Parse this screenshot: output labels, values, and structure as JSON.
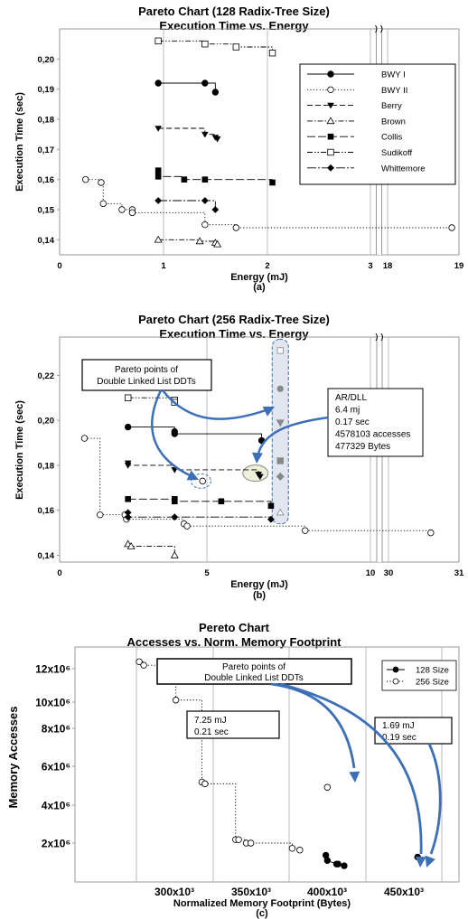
{
  "chart_data": [
    {
      "type": "scatter",
      "title": "Pareto Chart (128 Radix-Tree Size)",
      "subtitle": "Execution Time vs. Energy",
      "xlabel": "Energy (mJ)",
      "ylabel": "Execution Time (sec)",
      "caption": "(a)",
      "xticks": [
        "0",
        "1",
        "2",
        "3",
        "18",
        "19"
      ],
      "yticks": [
        "0,14",
        "0,15",
        "0,16",
        "0,17",
        "0,18",
        "0,19",
        "0,20"
      ],
      "xlim": [
        0,
        19
      ],
      "ylim": [
        0.135,
        0.21
      ],
      "x_axis_break": [
        3.5,
        17.5
      ],
      "grid": "vertical",
      "legend_position": "top-right",
      "series": [
        {
          "name": "BWY I",
          "marker": "filled-circle",
          "line": "solid",
          "points": [
            [
              0.95,
              0.192
            ],
            [
              1.4,
              0.192
            ],
            [
              1.5,
              0.189
            ]
          ]
        },
        {
          "name": "BWY II",
          "marker": "open-circle",
          "line": "dotted",
          "points": [
            [
              0.25,
              0.16
            ],
            [
              0.4,
              0.159
            ],
            [
              0.42,
              0.152
            ],
            [
              0.6,
              0.15
            ],
            [
              0.7,
              0.15
            ],
            [
              0.7,
              0.149
            ],
            [
              1.4,
              0.145
            ],
            [
              1.7,
              0.144
            ],
            [
              18.9,
              0.144
            ]
          ]
        },
        {
          "name": "Berry",
          "marker": "filled-triangle-down",
          "line": "dashed",
          "points": [
            [
              0.95,
              0.177
            ],
            [
              1.4,
              0.175
            ],
            [
              1.5,
              0.174
            ],
            [
              1.52,
              0.1735
            ]
          ]
        },
        {
          "name": "Brown",
          "marker": "open-triangle-up",
          "line": "dash-dot",
          "points": [
            [
              0.95,
              0.14
            ],
            [
              1.35,
              0.1395
            ],
            [
              1.5,
              0.139
            ],
            [
              1.52,
              0.1385
            ]
          ]
        },
        {
          "name": "Collis",
          "marker": "filled-square",
          "line": "long-dash",
          "points": [
            [
              0.95,
              0.163
            ],
            [
              0.95,
              0.161
            ],
            [
              1.2,
              0.16
            ],
            [
              1.4,
              0.16
            ],
            [
              2.05,
              0.159
            ]
          ]
        },
        {
          "name": "Sudikoff",
          "marker": "open-square",
          "line": "dash-dot-dot",
          "points": [
            [
              0.95,
              0.206
            ],
            [
              1.4,
              0.205
            ],
            [
              1.7,
              0.204
            ],
            [
              2.05,
              0.202
            ]
          ]
        },
        {
          "name": "Whittemore",
          "marker": "filled-diamond",
          "line": "long-dash-dot",
          "points": [
            [
              0.95,
              0.153
            ],
            [
              1.4,
              0.153
            ],
            [
              1.5,
              0.15
            ]
          ]
        }
      ]
    },
    {
      "type": "scatter",
      "title": "Pareto Chart (256 Radix-Tree Size)",
      "subtitle": "Execution Time vs. Energy",
      "xlabel": "Energy (mJ)",
      "ylabel": "Execution Time (sec)",
      "caption": "(b)",
      "xticks": [
        "0",
        "5",
        "10",
        "30",
        "31"
      ],
      "yticks": [
        "0,14",
        "0,16",
        "0,18",
        "0,20",
        "0,22"
      ],
      "xlim": [
        0,
        31
      ],
      "ylim": [
        0.137,
        0.237
      ],
      "x_axis_break": [
        10.5,
        29.5
      ],
      "grid": "vertical",
      "annotations": [
        {
          "text": [
            "Pareto points of",
            "Double Linked List DDTs"
          ]
        },
        {
          "text": [
            "AR/DLL",
            "6.4 mj",
            "0.17 sec",
            "4578103 accesses",
            "477329 Bytes"
          ]
        }
      ],
      "series": [
        {
          "name": "BWY I",
          "marker": "filled-circle",
          "line": "solid",
          "points": [
            [
              2.2,
              0.197
            ],
            [
              3.7,
              0.195
            ],
            [
              3.7,
              0.194
            ],
            [
              6.5,
              0.191
            ]
          ]
        },
        {
          "name": "BWY II",
          "marker": "open-circle",
          "line": "dotted",
          "points": [
            [
              0.8,
              0.192
            ],
            [
              1.3,
              0.158
            ],
            [
              2.1,
              0.158
            ],
            [
              2.15,
              0.156
            ],
            [
              4.0,
              0.154
            ],
            [
              4.1,
              0.153
            ],
            [
              7.9,
              0.151
            ],
            [
              30.6,
              0.15
            ],
            [
              4.6,
              0.173
            ]
          ]
        },
        {
          "name": "Berry",
          "marker": "filled-triangle-down",
          "line": "dashed",
          "points": [
            [
              2.2,
              0.181
            ],
            [
              2.2,
              0.18
            ],
            [
              3.7,
              0.178
            ],
            [
              6.4,
              0.176
            ],
            [
              6.45,
              0.175
            ]
          ]
        },
        {
          "name": "Brown",
          "marker": "open-triangle-up",
          "line": "dash-dot",
          "points": [
            [
              2.2,
              0.145
            ],
            [
              2.3,
              0.144
            ],
            [
              3.7,
              0.14
            ]
          ]
        },
        {
          "name": "Collis",
          "marker": "filled-square",
          "line": "long-dash",
          "points": [
            [
              2.2,
              0.165
            ],
            [
              3.7,
              0.165
            ],
            [
              3.7,
              0.164
            ],
            [
              5.2,
              0.164
            ],
            [
              6.8,
              0.162
            ]
          ]
        },
        {
          "name": "Sudikoff",
          "marker": "open-square",
          "line": "dash-dot-dot",
          "points": [
            [
              2.2,
              0.21
            ],
            [
              3.7,
              0.209
            ],
            [
              3.7,
              0.208
            ]
          ]
        },
        {
          "name": "Whittemore",
          "marker": "filled-diamond",
          "line": "long-dash-dot",
          "points": [
            [
              2.2,
              0.159
            ],
            [
              2.2,
              0.157
            ],
            [
              3.7,
              0.157
            ],
            [
              6.8,
              0.156
            ]
          ]
        },
        {
          "name": "DLL",
          "marker": "grey",
          "line": "none",
          "points": [
            [
              7.1,
              0.231
            ],
            [
              7.1,
              0.214
            ],
            [
              7.1,
              0.199
            ],
            [
              7.1,
              0.182
            ],
            [
              7.1,
              0.175
            ],
            [
              7.1,
              0.159
            ]
          ]
        }
      ]
    },
    {
      "type": "scatter",
      "title": "Pereto Chart",
      "subtitle": "Accesses vs. Norm. Memory Footprint",
      "xlabel": "Normalized Memory Footprint (Bytes)",
      "ylabel": "Memory Accesses",
      "caption": "(c)",
      "xticks": [
        "300x10³",
        "350x10³",
        "400x10³",
        "450x10³"
      ],
      "yticks": [
        "2x10⁶",
        "4x10⁶",
        "6x10⁶",
        "8x10⁶",
        "10x10⁶",
        "12x10⁶"
      ],
      "xlim": [
        270000,
        470000
      ],
      "ylim": [
        0,
        13000000
      ],
      "grid": "vertical",
      "legend_position": "top-right",
      "annotations": [
        {
          "text": [
            "Pareto points of",
            "Double Linked List DDTs"
          ]
        },
        {
          "text": [
            "7.25 mJ",
            "0.21 sec"
          ]
        },
        {
          "text": [
            "1.69 mJ",
            "0.19 sec"
          ]
        }
      ],
      "series": [
        {
          "name": "128 Size",
          "marker": "filled-circle",
          "line": "solid",
          "points": [
            [
              399000,
              1300000
            ],
            [
              400000,
              1000000
            ],
            [
              406000,
              800000
            ],
            [
              407000,
              800000
            ],
            [
              411000,
              700000
            ],
            [
              459000,
              1200000
            ]
          ]
        },
        {
          "name": "256 Size",
          "marker": "open-circle",
          "line": "dotted",
          "points": [
            [
              277000,
              12400000
            ],
            [
              280000,
              12200000
            ],
            [
              301000,
              10200000
            ],
            [
              318000,
              5500000
            ],
            [
              320000,
              5400000
            ],
            [
              340000,
              2200000
            ],
            [
              342000,
              2200000
            ],
            [
              347000,
              2000000
            ],
            [
              350000,
              2000000
            ],
            [
              377000,
              1700000
            ],
            [
              382000,
              1600000
            ],
            [
              400000,
              5200000
            ]
          ]
        }
      ]
    }
  ]
}
